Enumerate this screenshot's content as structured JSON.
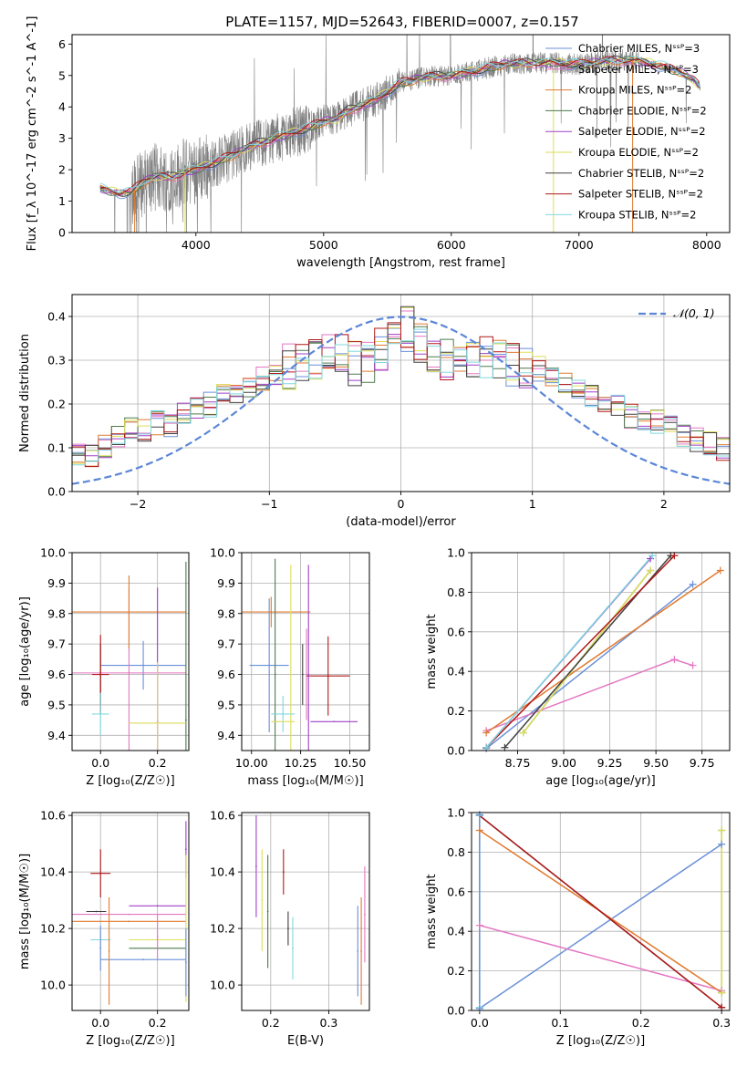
{
  "figure": {
    "title": "PLATE=1157, MJD=52643, FIBERID=0007, z=0.157"
  },
  "chart_data": [
    {
      "id": "spectrum",
      "type": "line",
      "title": "PLATE=1157, MJD=52643, FIBERID=0007, z=0.157",
      "xlabel": "wavelength [Angstrom, rest frame]",
      "ylabel": "Flux [f_λ 10^-17 erg cm^-2 s^-1 A^-1]",
      "xlim": [
        3030,
        8180
      ],
      "ylim": [
        0,
        6.3
      ],
      "xticks": [
        4000,
        5000,
        6000,
        7000,
        8000
      ],
      "yticks": [
        0,
        1,
        2,
        3,
        4,
        5,
        6
      ],
      "grid": false,
      "legend_position": "right",
      "data_color": "#7f7f7f",
      "data_anchors": {
        "x": [
          3250,
          3400,
          3500,
          3600,
          3700,
          3800,
          3900,
          4000,
          4100,
          4200,
          4300,
          4400,
          4500,
          4700,
          4900,
          5000,
          5100,
          5200,
          5400,
          5600,
          5800,
          6000,
          6200,
          6400,
          6600,
          6800,
          7000,
          7200,
          7400,
          7600,
          7800,
          7900,
          7950
        ],
        "y": [
          1.4,
          1.25,
          1.3,
          1.65,
          1.8,
          1.75,
          1.9,
          2.0,
          2.15,
          2.3,
          2.5,
          2.7,
          2.85,
          3.1,
          3.35,
          3.55,
          3.6,
          3.9,
          4.2,
          4.75,
          4.95,
          5.0,
          5.15,
          5.35,
          5.4,
          5.4,
          5.35,
          5.45,
          5.5,
          5.35,
          5.1,
          4.85,
          4.6
        ]
      },
      "series": [
        {
          "name": "Chabrier MILES, N_SSP=3",
          "color": "#6a8fd8"
        },
        {
          "name": "Salpeter MILES, N_SSP=3",
          "color": "#e377c2"
        },
        {
          "name": "Kroupa MILES, N_SSP=2",
          "color": "#e07a30"
        },
        {
          "name": "Chabrier ELODIE, N_SSP=2",
          "color": "#4d7a4d"
        },
        {
          "name": "Salpeter ELODIE, N_SSP=2",
          "color": "#a040c8"
        },
        {
          "name": "Kroupa ELODIE, N_SSP=2",
          "color": "#dede5a"
        },
        {
          "name": "Chabrier STELIB, N_SSP=2",
          "color": "#404040"
        },
        {
          "name": "Salpeter STELIB, N_SSP=2",
          "color": "#b01818"
        },
        {
          "name": "Kroupa STELIB, N_SSP=2",
          "color": "#80d8e0"
        }
      ]
    },
    {
      "id": "residuals",
      "type": "line",
      "xlabel": "(data-model)/error",
      "ylabel": "Normed distribution",
      "xlim": [
        -2.5,
        2.5
      ],
      "ylim": [
        0,
        0.45
      ],
      "xticks": [
        -2,
        -1,
        0,
        1,
        2
      ],
      "yticks": [
        0.0,
        0.1,
        0.2,
        0.3,
        0.4
      ],
      "grid": true,
      "legend_position": "top-right",
      "gaussian": {
        "name": "𝒩(0, 1)",
        "color": "#5b86d8",
        "style": "dashed"
      },
      "bin_edges_start": -2.5,
      "bin_width": 0.1,
      "base_hist": [
        0.085,
        0.08,
        0.1,
        0.12,
        0.14,
        0.135,
        0.155,
        0.15,
        0.175,
        0.19,
        0.2,
        0.215,
        0.22,
        0.245,
        0.255,
        0.26,
        0.285,
        0.3,
        0.3,
        0.31,
        0.32,
        0.295,
        0.3,
        0.33,
        0.38,
        0.37,
        0.33,
        0.32,
        0.3,
        0.31,
        0.31,
        0.3,
        0.3,
        0.29,
        0.29,
        0.28,
        0.27,
        0.25,
        0.24,
        0.22,
        0.2,
        0.2,
        0.17,
        0.17,
        0.16,
        0.15,
        0.13,
        0.12,
        0.11,
        0.1,
        0.09,
        0.085,
        0.08,
        0.075,
        0.07,
        0.065,
        0.06,
        0.055,
        0.05,
        0.045,
        0.045,
        0.04,
        0.04,
        0.04,
        0.038,
        0.035,
        0.035,
        0.03,
        0.03,
        0.025
      ]
    },
    {
      "id": "age_vs_Z",
      "type": "scatter",
      "xlabel": "Z [log₁₀(Z/Z☉)]",
      "ylabel": "age  [log₁₀(age/yr)]",
      "xlim": [
        -0.1,
        0.31
      ],
      "ylim": [
        9.35,
        10.0
      ],
      "xticks": [
        0.0,
        0.2
      ],
      "yticks": [
        9.4,
        9.5,
        9.6,
        9.7,
        9.8,
        9.9,
        10.0
      ],
      "grid": true,
      "points": [
        {
          "series": 0,
          "x": 0.15,
          "y": 9.63,
          "xerr": 0.15,
          "yerr": 0.08
        },
        {
          "series": 1,
          "x": 0.1,
          "y": 9.605,
          "xerr": 0.2,
          "yerr": 0.28
        },
        {
          "series": 2,
          "x": 0.1,
          "y": 9.805,
          "xerr": 0.2,
          "yerr": 0.12
        },
        {
          "series": 3,
          "x": 0.3,
          "y": 9.45,
          "xerr": 0.0,
          "yerr": 0.52
        },
        {
          "series": 4,
          "x": 0.2,
          "y": 9.445,
          "xerr": 0.0,
          "yerr": 0.44
        },
        {
          "series": 5,
          "x": 0.2,
          "y": 9.44,
          "xerr": 0.1,
          "yerr": 0.2
        },
        {
          "series": 6,
          "x": 0.0,
          "y": 9.6,
          "xerr": 0.0,
          "yerr": 0.1
        },
        {
          "series": 7,
          "x": 0.0,
          "y": 9.6,
          "xerr": 0.03,
          "yerr": 0.13
        },
        {
          "series": 8,
          "x": 0.0,
          "y": 9.47,
          "xerr": 0.03,
          "yerr": 0.07
        }
      ]
    },
    {
      "id": "age_vs_mass",
      "type": "scatter",
      "xlabel": "mass [log₁₀(M/M☉)]",
      "ylabel": "",
      "xlim": [
        9.95,
        10.6
      ],
      "ylim": [
        9.35,
        10.0
      ],
      "xticks": [
        10.0,
        10.25,
        10.5
      ],
      "yticks": [
        9.4,
        9.5,
        9.6,
        9.7,
        9.8,
        9.9,
        10.0
      ],
      "grid": true,
      "points": [
        {
          "series": 0,
          "x": 10.09,
          "y": 9.63,
          "xerr": 0.1,
          "yerr": 0.22
        },
        {
          "series": 1,
          "x": 10.28,
          "y": 9.6,
          "xerr": 0.0,
          "yerr": 0.15
        },
        {
          "series": 2,
          "x": 10.1,
          "y": 9.805,
          "xerr": 0.2,
          "yerr": 0.05
        },
        {
          "series": 3,
          "x": 10.12,
          "y": 9.6,
          "xerr": 0.0,
          "yerr": 0.38
        },
        {
          "series": 4,
          "x": 10.42,
          "y": 9.445,
          "xerr": 0.12,
          "yerr": 0.0
        },
        {
          "series": 5,
          "x": 10.2,
          "y": 9.6,
          "xerr": 0.0,
          "yerr": 0.36
        },
        {
          "series": 6,
          "x": 10.26,
          "y": 9.6,
          "xerr": 0.0,
          "yerr": 0.1
        },
        {
          "series": 7,
          "x": 10.39,
          "y": 9.595,
          "xerr": 0.11,
          "yerr": 0.13
        },
        {
          "series": 8,
          "x": 10.16,
          "y": 9.47,
          "xerr": 0.06,
          "yerr": 0.06
        },
        {
          "series": 5,
          "x": 10.16,
          "y": 9.445,
          "xerr": 0.06,
          "yerr": 0.0
        },
        {
          "series": 4,
          "x": 10.29,
          "y": 9.6,
          "xerr": 0.0,
          "yerr": 0.36
        }
      ]
    },
    {
      "id": "weight_vs_age",
      "type": "line",
      "xlabel": "age  [log₁₀(age/yr)]",
      "ylabel": "mass weight",
      "xlim": [
        8.5,
        9.9
      ],
      "ylim": [
        0.0,
        1.0
      ],
      "xticks": [
        8.75,
        9.0,
        9.25,
        9.5,
        9.75
      ],
      "yticks": [
        0.0,
        0.2,
        0.4,
        0.6,
        0.8,
        1.0
      ],
      "grid": true,
      "segments": [
        {
          "series": 0,
          "x": [
            8.58,
            9.7
          ],
          "y": [
            0.01,
            0.84
          ]
        },
        {
          "series": 1,
          "x": [
            8.58,
            9.6,
            9.7
          ],
          "y": [
            0.1,
            0.46,
            0.43
          ]
        },
        {
          "series": 2,
          "x": [
            8.58,
            9.85
          ],
          "y": [
            0.09,
            0.91
          ]
        },
        {
          "series": 3,
          "x": [
            8.78,
            9.47
          ],
          "y": [
            0.09,
            0.91
          ]
        },
        {
          "series": 4,
          "x": [
            8.58,
            9.47
          ],
          "y": [
            0.015,
            0.97
          ]
        },
        {
          "series": 5,
          "x": [
            8.78,
            9.47
          ],
          "y": [
            0.09,
            0.91
          ]
        },
        {
          "series": 6,
          "x": [
            8.68,
            9.58
          ],
          "y": [
            0.015,
            0.985
          ]
        },
        {
          "series": 7,
          "x": [
            8.58,
            9.6
          ],
          "y": [
            0.015,
            0.985
          ]
        },
        {
          "series": 8,
          "x": [
            8.58,
            9.48
          ],
          "y": [
            0.015,
            0.985
          ]
        }
      ]
    },
    {
      "id": "mass_vs_Z",
      "type": "scatter",
      "xlabel": "Z [log₁₀(Z/Z☉)]",
      "ylabel": "mass [log₁₀(M/M☉)]",
      "xlim": [
        -0.1,
        0.31
      ],
      "ylim": [
        9.91,
        10.61
      ],
      "xticks": [
        0.0,
        0.2
      ],
      "yticks": [
        10.0,
        10.2,
        10.4,
        10.6
      ],
      "grid": true,
      "points": [
        {
          "series": 0,
          "x": 0.15,
          "y": 10.09,
          "xerr": 0.15,
          "yerr": 0.0
        },
        {
          "series": 1,
          "x": 0.1,
          "y": 10.25,
          "xerr": 0.2,
          "yerr": 0.0
        },
        {
          "series": 2,
          "x": 0.1,
          "y": 10.225,
          "xerr": 0.2,
          "yerr": 0.0
        },
        {
          "series": 3,
          "x": 0.2,
          "y": 10.13,
          "xerr": 0.1,
          "yerr": 0.0
        },
        {
          "series": 4,
          "x": 0.2,
          "y": 10.28,
          "xerr": 0.1,
          "yerr": 0.0
        },
        {
          "series": 5,
          "x": 0.2,
          "y": 10.16,
          "xerr": 0.1,
          "yerr": 0.0
        },
        {
          "series": 6,
          "x": -0.015,
          "y": 10.26,
          "xerr": 0.035,
          "yerr": 0.0
        },
        {
          "series": 7,
          "x": 0.0,
          "y": 10.395,
          "xerr": 0.035,
          "yerr": 0.085
        },
        {
          "series": 8,
          "x": 0.0,
          "y": 10.16,
          "xerr": 0.035,
          "yerr": 0.0
        },
        {
          "series": 2,
          "x": 0.03,
          "y": 10.12,
          "xerr": 0.0,
          "yerr": 0.19
        },
        {
          "series": 1,
          "x": 0.2,
          "y": 10.17,
          "xerr": 0.0,
          "yerr": 0.08
        },
        {
          "series": 0,
          "x": 0.0,
          "y": 10.13,
          "xerr": 0.0,
          "yerr": 0.08
        },
        {
          "series": 4,
          "x": 0.3,
          "y": 10.48,
          "xerr": 0.0,
          "yerr": 0.1
        },
        {
          "series": 5,
          "x": 0.3,
          "y": 10.2,
          "xerr": 0.0,
          "yerr": 0.26
        },
        {
          "series": 0,
          "x": 0.3,
          "y": 10.08,
          "xerr": 0.0,
          "yerr": 0.12
        }
      ]
    },
    {
      "id": "mass_vs_ebv",
      "type": "scatter",
      "xlabel": "E(B-V)",
      "ylabel": "",
      "xlim": [
        0.15,
        0.37
      ],
      "ylim": [
        9.91,
        10.61
      ],
      "xticks": [
        0.2,
        0.3
      ],
      "yticks": [
        10.0,
        10.2,
        10.4,
        10.6
      ],
      "grid": true,
      "points": [
        {
          "series": 4,
          "x": 0.175,
          "y": 10.42,
          "xerr": 0,
          "yerr": 0.18
        },
        {
          "series": 5,
          "x": 0.185,
          "y": 10.3,
          "xerr": 0,
          "yerr": 0.18
        },
        {
          "series": 3,
          "x": 0.195,
          "y": 10.26,
          "xerr": 0,
          "yerr": 0.2
        },
        {
          "series": 7,
          "x": 0.222,
          "y": 10.4,
          "xerr": 0,
          "yerr": 0.08
        },
        {
          "series": 6,
          "x": 0.23,
          "y": 10.2,
          "xerr": 0,
          "yerr": 0.06
        },
        {
          "series": 8,
          "x": 0.238,
          "y": 10.13,
          "xerr": 0,
          "yerr": 0.11
        },
        {
          "series": 0,
          "x": 0.35,
          "y": 10.12,
          "xerr": 0,
          "yerr": 0.16
        },
        {
          "series": 2,
          "x": 0.356,
          "y": 10.12,
          "xerr": 0,
          "yerr": 0.19
        },
        {
          "series": 1,
          "x": 0.362,
          "y": 10.25,
          "xerr": 0,
          "yerr": 0.17
        }
      ]
    },
    {
      "id": "weight_vs_Z",
      "type": "line",
      "xlabel": "Z [log₁₀(Z/Z☉)]",
      "ylabel": "mass weight",
      "xlim": [
        -0.01,
        0.31
      ],
      "ylim": [
        0.0,
        1.0
      ],
      "xticks": [
        0.0,
        0.1,
        0.2,
        0.3
      ],
      "yticks": [
        0.0,
        0.2,
        0.4,
        0.6,
        0.8,
        1.0
      ],
      "grid": true,
      "segments": [
        {
          "series": 0,
          "x": [
            0.0,
            0.3
          ],
          "y": [
            0.01,
            0.84
          ]
        },
        {
          "series": 1,
          "x": [
            0.0,
            0.3
          ],
          "y": [
            0.43,
            0.1
          ]
        },
        {
          "series": 2,
          "x": [
            0.0,
            0.3
          ],
          "y": [
            0.91,
            0.09
          ]
        },
        {
          "series": 3,
          "x": [
            0.3,
            0.3
          ],
          "y": [
            0.09,
            0.91
          ]
        },
        {
          "series": 5,
          "x": [
            0.3,
            0.3
          ],
          "y": [
            0.09,
            0.91
          ]
        },
        {
          "series": 6,
          "x": [
            0.0,
            0.3
          ],
          "y": [
            0.985,
            0.015
          ]
        },
        {
          "series": 7,
          "x": [
            0.0,
            0.3
          ],
          "y": [
            0.985,
            0.015
          ]
        },
        {
          "series": 8,
          "x": [
            0.0,
            0.0
          ],
          "y": [
            0.015,
            0.985
          ]
        },
        {
          "series": 0,
          "x": [
            0.0,
            0.0
          ],
          "y": [
            0.01,
            0.99
          ]
        }
      ]
    }
  ]
}
